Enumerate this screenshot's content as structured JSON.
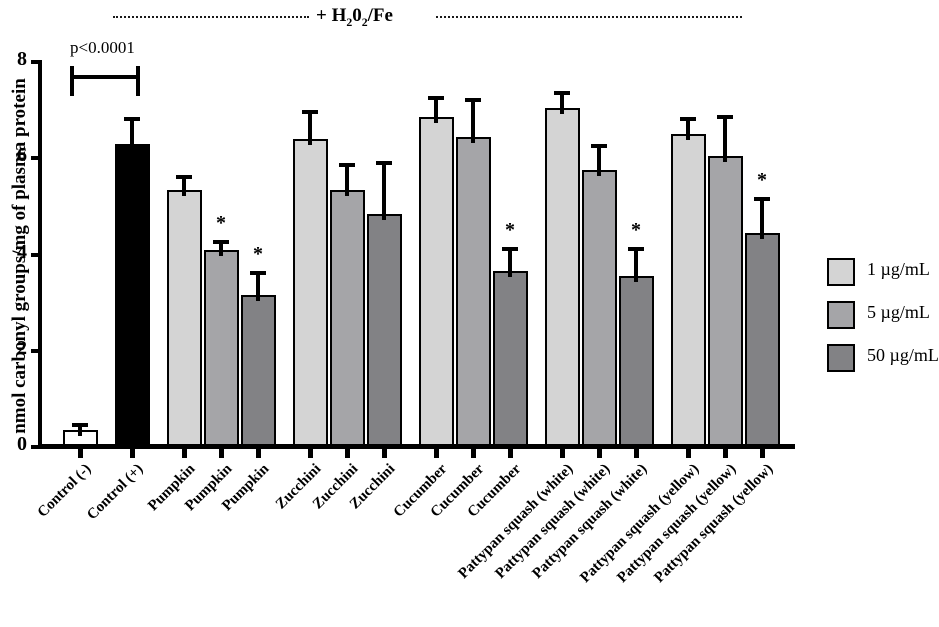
{
  "title": {
    "prefix": "+ H",
    "sub1": "2",
    "mid": "0",
    "sub2": "2",
    "suffix": "/Fe"
  },
  "significance": {
    "label": "p<0.0001",
    "marker": "*"
  },
  "legend": {
    "items": [
      {
        "label": "1 µg/mL",
        "color": "#d4d4d4"
      },
      {
        "label": "5 µg/mL",
        "color": "#a5a5a8"
      },
      {
        "label": "50 µg/mL",
        "color": "#828285"
      }
    ]
  },
  "chart_data": {
    "type": "bar",
    "title": "+ H2O2/Fe",
    "ylabel": "nmol carbonyl groups/mg of plasma protein",
    "xlabel": "",
    "ylim": [
      0,
      8
    ],
    "yticks": [
      0,
      2,
      4,
      6,
      8
    ],
    "grid": false,
    "legend_position": "right",
    "error_bars": "sd-upper",
    "groups": [
      {
        "bars": [
          {
            "label": "Control (-)",
            "value": 0.35,
            "sd": 0.15,
            "color": "#ffffff",
            "star": false
          }
        ]
      },
      {
        "bars": [
          {
            "label": "Control (+)",
            "value": 6.3,
            "sd": 0.55,
            "color": "#000000",
            "star": false
          }
        ]
      },
      {
        "bars": [
          {
            "label": "Pumpkin",
            "value": 5.35,
            "sd": 0.3,
            "color": "#d4d4d4",
            "star": false
          },
          {
            "label": "Pumpkin",
            "value": 4.1,
            "sd": 0.2,
            "color": "#a5a5a8",
            "star": true
          },
          {
            "label": "Pumpkin",
            "value": 3.15,
            "sd": 0.5,
            "color": "#828285",
            "star": true
          }
        ]
      },
      {
        "bars": [
          {
            "label": "Zucchini",
            "value": 6.4,
            "sd": 0.6,
            "color": "#d4d4d4",
            "star": false
          },
          {
            "label": "Zucchini",
            "value": 5.35,
            "sd": 0.55,
            "color": "#a5a5a8",
            "star": false
          },
          {
            "label": "Zucchini",
            "value": 4.85,
            "sd": 1.1,
            "color": "#828285",
            "star": false
          }
        ]
      },
      {
        "bars": [
          {
            "label": "Cucumber",
            "value": 6.85,
            "sd": 0.45,
            "color": "#d4d4d4",
            "star": false
          },
          {
            "label": "Cucumber",
            "value": 6.45,
            "sd": 0.8,
            "color": "#a5a5a8",
            "star": false
          },
          {
            "label": "Cucumber",
            "value": 3.65,
            "sd": 0.5,
            "color": "#828285",
            "star": true
          }
        ]
      },
      {
        "bars": [
          {
            "label": "Pattypan squash (white)",
            "value": 7.05,
            "sd": 0.35,
            "color": "#d4d4d4",
            "star": false
          },
          {
            "label": "Pattypan squash (white)",
            "value": 5.75,
            "sd": 0.55,
            "color": "#a5a5a8",
            "star": false
          },
          {
            "label": "Pattypan squash (white)",
            "value": 3.55,
            "sd": 0.6,
            "color": "#828285",
            "star": true
          }
        ]
      },
      {
        "bars": [
          {
            "label": "Pattypan squash (yellow)",
            "value": 6.5,
            "sd": 0.35,
            "color": "#d4d4d4",
            "star": false
          },
          {
            "label": "Pattypan squash (yellow)",
            "value": 6.05,
            "sd": 0.85,
            "color": "#a5a5a8",
            "star": false
          },
          {
            "label": "Pattypan squash (yellow)",
            "value": 4.45,
            "sd": 0.75,
            "color": "#828285",
            "star": true
          }
        ]
      }
    ]
  }
}
